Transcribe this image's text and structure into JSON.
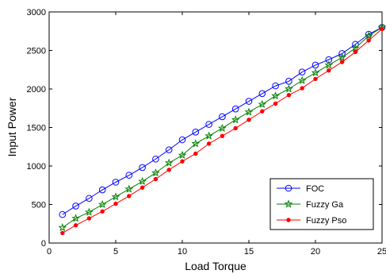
{
  "chart_data": {
    "type": "line",
    "xlabel": "Load Torque",
    "ylabel": "Input Power",
    "xlim": [
      0,
      25
    ],
    "ylim": [
      0,
      3000
    ],
    "xticks": [
      0,
      5,
      10,
      15,
      20,
      25
    ],
    "yticks": [
      0,
      500,
      1000,
      1500,
      2000,
      2500,
      3000
    ],
    "grid": false,
    "legend_position": "bottom-right",
    "x": [
      1,
      2,
      3,
      4,
      5,
      6,
      7,
      8,
      9,
      10,
      11,
      12,
      13,
      14,
      15,
      16,
      17,
      18,
      19,
      20,
      21,
      22,
      23,
      24,
      25
    ],
    "series": [
      {
        "name": "FOC",
        "color": "#0000ff",
        "marker": "circle",
        "values": [
          370,
          480,
          580,
          690,
          790,
          880,
          980,
          1090,
          1210,
          1340,
          1440,
          1540,
          1640,
          1740,
          1840,
          1940,
          2040,
          2100,
          2220,
          2310,
          2380,
          2460,
          2580,
          2710,
          2800
        ]
      },
      {
        "name": "Fuzzy Ga",
        "color": "#008000",
        "marker": "star",
        "values": [
          200,
          320,
          400,
          500,
          600,
          700,
          800,
          910,
          1040,
          1140,
          1290,
          1390,
          1490,
          1600,
          1700,
          1800,
          1910,
          2000,
          2110,
          2210,
          2310,
          2410,
          2530,
          2690,
          2800
        ]
      },
      {
        "name": "Fuzzy Pso",
        "color": "#ff0000",
        "marker": "dot",
        "values": [
          130,
          230,
          320,
          410,
          510,
          610,
          720,
          830,
          950,
          1060,
          1160,
          1290,
          1390,
          1490,
          1600,
          1710,
          1810,
          1920,
          2010,
          2130,
          2240,
          2350,
          2480,
          2630,
          2780
        ]
      }
    ]
  }
}
